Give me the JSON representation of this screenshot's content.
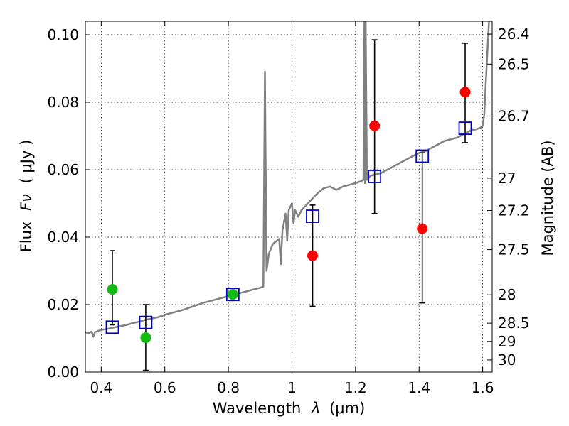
{
  "chart_data": {
    "type": "scatter",
    "xlabel_text": "Wavelength",
    "xlabel_symbol": "λ",
    "xlabel_unit": "(μm)",
    "ylabel_text": "Flux",
    "ylabel_symbol": "Fν",
    "ylabel_unit": "( μJy )",
    "y2label": "Magnitude (AB)",
    "xlim": [
      0.35,
      1.63
    ],
    "ylim": [
      0.0,
      0.104
    ],
    "grid": true,
    "x_ticks": [
      {
        "value": 0.4,
        "label": "0.4"
      },
      {
        "value": 0.6,
        "label": "0.6"
      },
      {
        "value": 0.8,
        "label": "0.8"
      },
      {
        "value": 1.0,
        "label": "1"
      },
      {
        "value": 1.2,
        "label": "1.2"
      },
      {
        "value": 1.4,
        "label": "1.4"
      },
      {
        "value": 1.6,
        "label": "1.6"
      }
    ],
    "y_ticks": [
      {
        "value": 0.0,
        "label": "0.00"
      },
      {
        "value": 0.02,
        "label": "0.02"
      },
      {
        "value": 0.04,
        "label": "0.04"
      },
      {
        "value": 0.06,
        "label": "0.06"
      },
      {
        "value": 0.08,
        "label": "0.08"
      },
      {
        "value": 0.1,
        "label": "0.10"
      }
    ],
    "y2_ticks": [
      {
        "flux": 0.1002,
        "label": "26.4"
      },
      {
        "flux": 0.0913,
        "label": "26.5"
      },
      {
        "flux": 0.0759,
        "label": "26.7"
      },
      {
        "flux": 0.0575,
        "label": "27"
      },
      {
        "flux": 0.0479,
        "label": "27.2"
      },
      {
        "flux": 0.0363,
        "label": "27.5"
      },
      {
        "flux": 0.0229,
        "label": "28"
      },
      {
        "flux": 0.0145,
        "label": "28.5"
      },
      {
        "flux": 0.0091,
        "label": "29"
      },
      {
        "flux": 0.0036,
        "label": "30"
      }
    ],
    "model_spectrum": {
      "color": "#808080",
      "x": [
        0.35,
        0.36,
        0.37,
        0.375,
        0.38,
        0.39,
        0.4,
        0.42,
        0.44,
        0.46,
        0.48,
        0.5,
        0.52,
        0.54,
        0.56,
        0.58,
        0.6,
        0.62,
        0.64,
        0.66,
        0.68,
        0.7,
        0.72,
        0.74,
        0.76,
        0.78,
        0.8,
        0.82,
        0.84,
        0.86,
        0.88,
        0.9,
        0.91,
        0.915,
        0.92,
        0.923,
        0.927,
        0.94,
        0.96,
        0.965,
        0.97,
        0.98,
        0.985,
        0.99,
        1.0,
        1.005,
        1.01,
        1.02,
        1.03,
        1.04,
        1.05,
        1.06,
        1.08,
        1.1,
        1.12,
        1.14,
        1.16,
        1.18,
        1.2,
        1.215,
        1.225,
        1.228,
        1.23,
        1.232,
        1.236,
        1.24,
        1.245,
        1.25,
        1.26,
        1.28,
        1.3,
        1.32,
        1.34,
        1.36,
        1.38,
        1.4,
        1.42,
        1.44,
        1.46,
        1.48,
        1.5,
        1.52,
        1.54,
        1.56,
        1.58,
        1.595,
        1.6,
        1.605,
        1.61,
        1.615,
        1.62
      ],
      "y": [
        0.0118,
        0.0115,
        0.012,
        0.0105,
        0.0118,
        0.0122,
        0.0125,
        0.0128,
        0.0132,
        0.0136,
        0.014,
        0.0145,
        0.015,
        0.0155,
        0.0159,
        0.0163,
        0.017,
        0.0175,
        0.018,
        0.0185,
        0.0192,
        0.0198,
        0.0205,
        0.021,
        0.0215,
        0.022,
        0.0225,
        0.023,
        0.0235,
        0.024,
        0.0245,
        0.025,
        0.0253,
        0.089,
        0.03,
        0.032,
        0.035,
        0.038,
        0.0395,
        0.032,
        0.042,
        0.047,
        0.039,
        0.048,
        0.05,
        0.044,
        0.048,
        0.046,
        0.048,
        0.049,
        0.05,
        0.051,
        0.053,
        0.0545,
        0.055,
        0.054,
        0.055,
        0.0555,
        0.056,
        0.0565,
        0.057,
        0.104,
        0.056,
        0.104,
        0.057,
        0.0575,
        0.058,
        0.0583,
        0.0585,
        0.059,
        0.06,
        0.061,
        0.062,
        0.063,
        0.064,
        0.065,
        0.0655,
        0.0665,
        0.0675,
        0.0685,
        0.069,
        0.0695,
        0.0705,
        0.0715,
        0.072,
        0.0725,
        0.073,
        0.076,
        0.086,
        0.095,
        0.104
      ]
    },
    "model_photometry": {
      "marker": "open-square",
      "color": "#0000cc",
      "points": [
        {
          "x": 0.435,
          "y": 0.0133
        },
        {
          "x": 0.54,
          "y": 0.0147
        },
        {
          "x": 0.814,
          "y": 0.023
        },
        {
          "x": 1.065,
          "y": 0.0462
        },
        {
          "x": 1.26,
          "y": 0.058
        },
        {
          "x": 1.41,
          "y": 0.064
        },
        {
          "x": 1.545,
          "y": 0.0723
        }
      ]
    },
    "observed_optical": {
      "marker": "filled-circle",
      "color": "#11bb11",
      "points": [
        {
          "x": 0.435,
          "y": 0.0245,
          "ylo": 0.014,
          "yhi": 0.036
        },
        {
          "x": 0.54,
          "y": 0.0102,
          "ylo": 0.0005,
          "yhi": 0.02
        },
        {
          "x": 0.814,
          "y": 0.023,
          "ylo": null,
          "yhi": null
        }
      ]
    },
    "observed_ir": {
      "marker": "filled-circle",
      "color": "#ff0000",
      "points": [
        {
          "x": 1.065,
          "y": 0.0345,
          "ylo": 0.0195,
          "yhi": 0.0495
        },
        {
          "x": 1.26,
          "y": 0.073,
          "ylo": 0.047,
          "yhi": 0.0985
        },
        {
          "x": 1.41,
          "y": 0.0425,
          "ylo": 0.0205,
          "yhi": 0.065
        },
        {
          "x": 1.545,
          "y": 0.083,
          "ylo": 0.068,
          "yhi": 0.0975
        }
      ]
    }
  }
}
